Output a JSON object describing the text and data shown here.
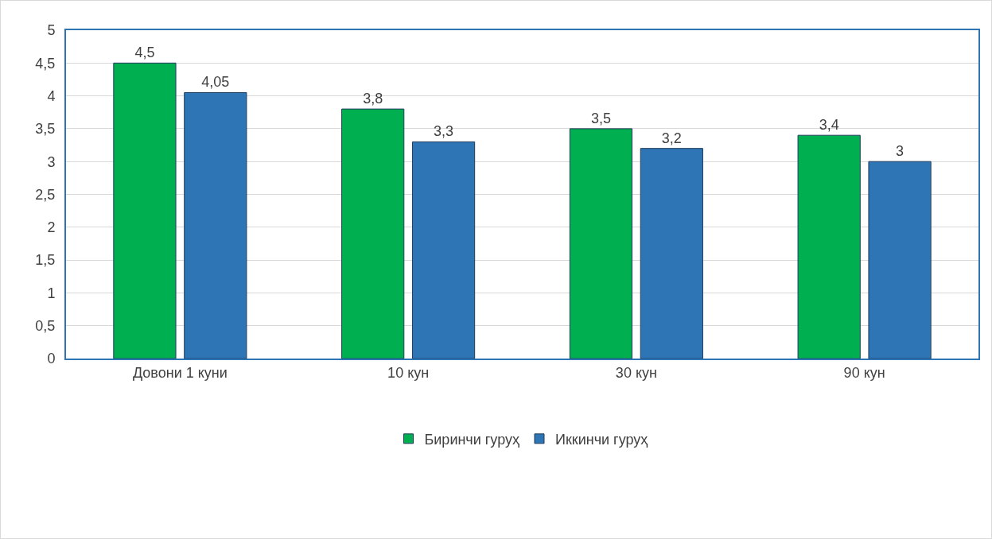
{
  "chart_data": {
    "type": "bar",
    "categories": [
      "Довони 1 куни",
      "10 кун",
      "30 кун",
      "90 кун"
    ],
    "series": [
      {
        "name": "Биринчи гуруҳ",
        "color": "#00b050",
        "values": [
          4.5,
          3.8,
          3.5,
          3.4
        ],
        "value_labels": [
          "4,5",
          "3,8",
          "3,5",
          "3,4"
        ]
      },
      {
        "name": "Иккинчи гуруҳ",
        "color": "#2e75b6",
        "values": [
          4.05,
          3.3,
          3.2,
          3
        ],
        "value_labels": [
          "4,05",
          "3,3",
          "3,2",
          "3"
        ]
      }
    ],
    "ylim": [
      0,
      5
    ],
    "yticks": [
      0,
      {
        "value": 0.5,
        "label": "0,5"
      },
      1,
      {
        "value": 1.5,
        "label": "1,5"
      },
      2,
      {
        "value": 2.5,
        "label": "2,5"
      },
      3,
      {
        "value": 3.5,
        "label": "3,5"
      },
      4,
      {
        "value": 4.5,
        "label": "4,5"
      },
      5
    ],
    "grid": "y",
    "legend": "bottom"
  }
}
